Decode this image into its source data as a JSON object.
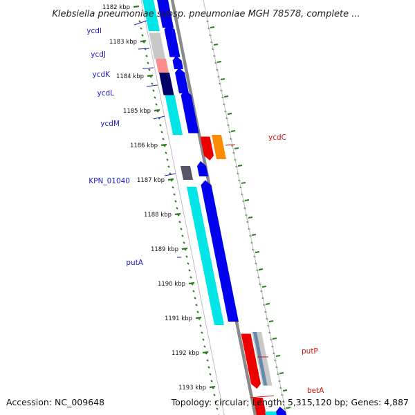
{
  "header": {
    "title": "Klebsiella pneumoniae subsp. pneumoniae MGH 78578, complete ..."
  },
  "footer": {
    "accession": "Accession: NC_009648",
    "summary": "Topology: circular; Length: 5,315,120 bp; Genes: 4,887"
  },
  "colors": {
    "backbone": "#8a8a8a",
    "tick": "#2a7d1c",
    "label_forward": "#1a1acc",
    "label_reverse": "#cc1111",
    "blue": "#0000ee",
    "navy": "#000066",
    "cyan": "#00e5e5",
    "pink": "#ff8c8c",
    "light_gray": "#c8c8c8",
    "dark_gray": "#555566",
    "red": "#ee0000",
    "orange": "#ff8c00",
    "steel": "#6688aa"
  },
  "scale": {
    "unit": "kbp",
    "ticks": [
      {
        "kbp": 1182,
        "label": "1182 kbp"
      },
      {
        "kbp": 1183,
        "label": "1183 kbp"
      },
      {
        "kbp": 1184,
        "label": "1184 kbp"
      },
      {
        "kbp": 1185,
        "label": "1185 kbp"
      },
      {
        "kbp": 1186,
        "label": "1186 kbp"
      },
      {
        "kbp": 1187,
        "label": "1187 kbp"
      },
      {
        "kbp": 1188,
        "label": "1188 kbp"
      },
      {
        "kbp": 1189,
        "label": "1189 kbp"
      },
      {
        "kbp": 1190,
        "label": "1190 kbp"
      },
      {
        "kbp": 1191,
        "label": "1191 kbp"
      },
      {
        "kbp": 1192,
        "label": "1192 kbp"
      },
      {
        "kbp": 1193,
        "label": "1193 kbp"
      }
    ]
  },
  "genes": [
    {
      "name": "ycdI",
      "label": "ycdI",
      "strand": "forward"
    },
    {
      "name": "ycdJ",
      "label": "ycdJ",
      "strand": "forward"
    },
    {
      "name": "ycdK",
      "label": "ycdK",
      "strand": "forward"
    },
    {
      "name": "ycdL",
      "label": "ycdL",
      "strand": "forward"
    },
    {
      "name": "ycdM",
      "label": "ycdM",
      "strand": "forward"
    },
    {
      "name": "ycdC",
      "label": "ycdC",
      "strand": "reverse"
    },
    {
      "name": "KPN_01040",
      "label": "KPN_01040",
      "strand": "forward"
    },
    {
      "name": "putA",
      "label": "putA",
      "strand": "forward"
    },
    {
      "name": "putP",
      "label": "putP",
      "strand": "reverse"
    },
    {
      "name": "betA",
      "label": "betA",
      "strand": "reverse"
    }
  ]
}
